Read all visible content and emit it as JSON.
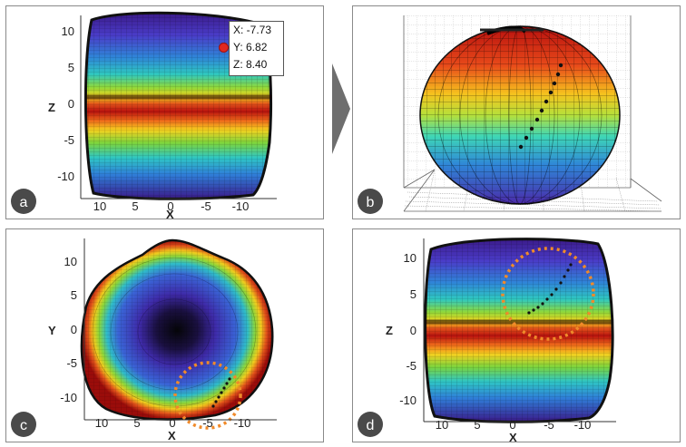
{
  "colors": {
    "blue": "#4b2aa8",
    "red": "#c01410",
    "orange": "#f08a2a",
    "badge": "#4a4a4a",
    "arrow": "#6e6e6e"
  },
  "panel_a": {
    "letter": "a",
    "x_axis_label": "X",
    "z_axis_label": "Z",
    "x_ticks": [
      "10",
      "5",
      "0",
      "-5",
      "-10"
    ],
    "z_ticks": [
      "10",
      "5",
      "0",
      "-5",
      "-10"
    ],
    "tooltip": {
      "x": "X: -7.73",
      "y": "Y: 6.82",
      "z": "Z: 8.40"
    }
  },
  "panel_b": {
    "letter": "b"
  },
  "panel_c": {
    "letter": "c",
    "x_axis_label": "X",
    "y_axis_label": "Y",
    "x_ticks": [
      "10",
      "5",
      "0",
      "-5",
      "-10"
    ],
    "y_ticks": [
      "10",
      "5",
      "0",
      "-5",
      "-10"
    ]
  },
  "panel_d": {
    "letter": "d",
    "x_axis_label": "X",
    "z_axis_label": "Z",
    "x_ticks": [
      "10",
      "5",
      "0",
      "-5",
      "-10"
    ],
    "z_ticks": [
      "10",
      "5",
      "0",
      "-5",
      "-10"
    ]
  }
}
